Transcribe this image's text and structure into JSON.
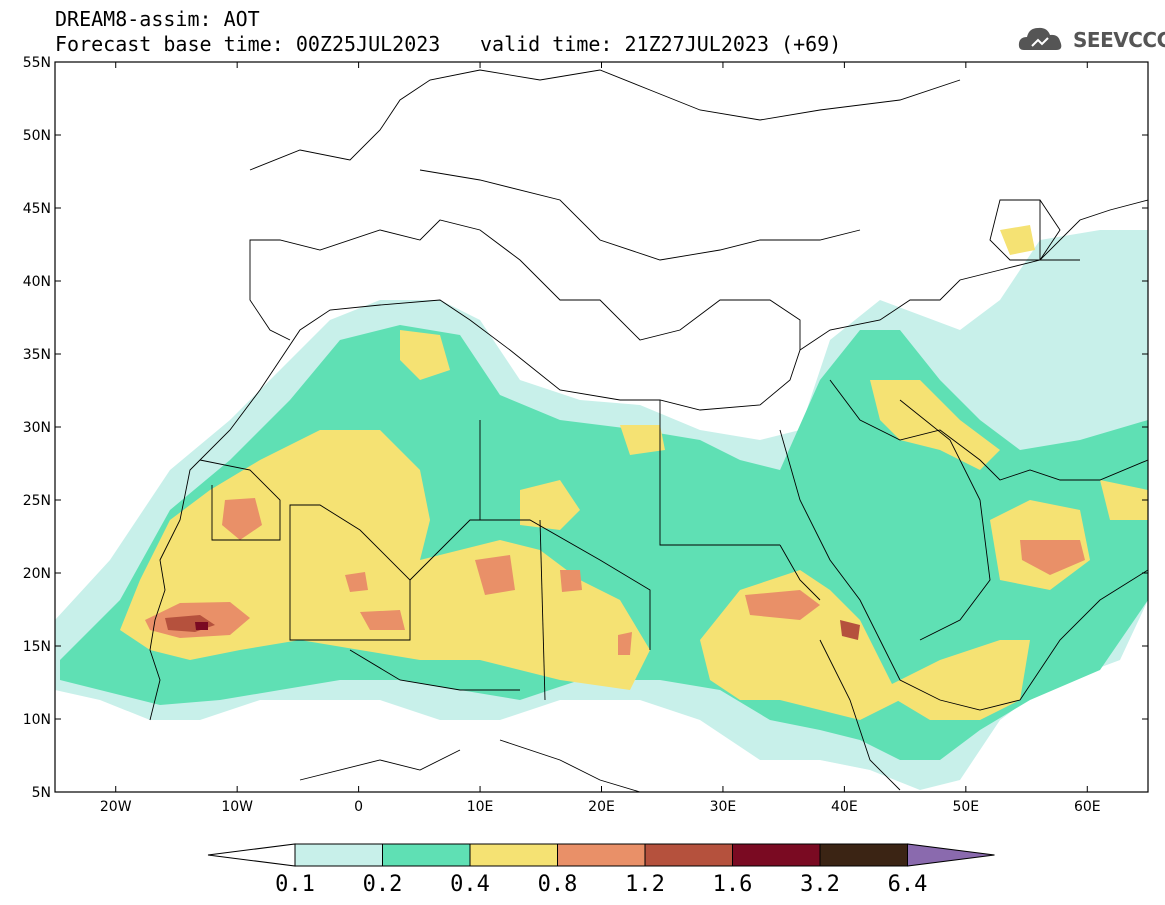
{
  "header": {
    "title": "DREAM8-assim: AOT",
    "base_time_label": "Forecast base time: 00Z25JUL2023",
    "valid_time_label": "valid time: 21Z27JUL2023 (+69)",
    "logo_text": "SEEVCCC"
  },
  "map": {
    "lon_range": [
      -25,
      65
    ],
    "lat_range": [
      5,
      55
    ],
    "lon_ticks": [
      "20W",
      "10W",
      "0",
      "10E",
      "20E",
      "30E",
      "40E",
      "50E",
      "60E"
    ],
    "lat_ticks": [
      "55N",
      "50N",
      "45N",
      "40N",
      "35N",
      "30N",
      "25N",
      "20N",
      "15N",
      "10N",
      "5N"
    ]
  },
  "colorbar": {
    "levels": [
      "0.1",
      "0.2",
      "0.4",
      "0.8",
      "1.2",
      "1.6",
      "3.2",
      "6.4"
    ],
    "colors": [
      "#c8f0ea",
      "#5fe0b4",
      "#f5e273",
      "#e99068",
      "#b5513d",
      "#7a0a22",
      "#3b2414",
      "#8a6aae"
    ]
  }
}
